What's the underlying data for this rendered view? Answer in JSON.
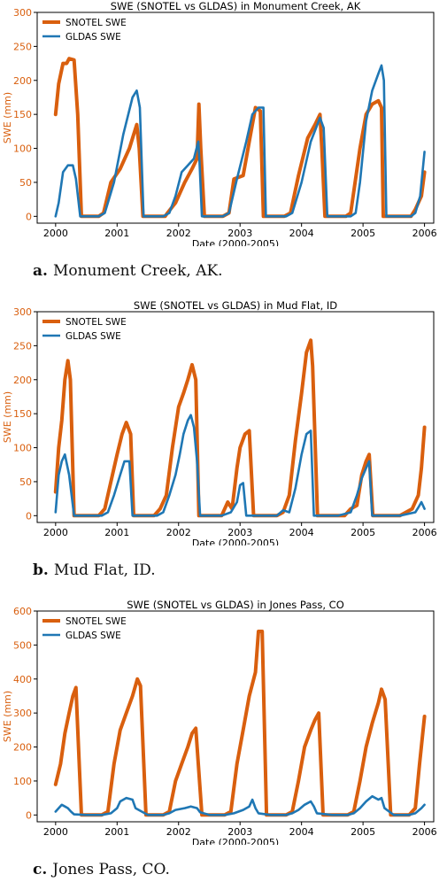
{
  "chart_data": [
    {
      "type": "line",
      "title": "SWE (SNOTEL vs GLDAS) in Monument Creek, AK",
      "xlabel": "Date (2000-2005)",
      "ylabel": "SWE (mm)",
      "xlim": [
        1999.7,
        2006.15
      ],
      "ylim": [
        -10,
        300
      ],
      "xticks": [
        2000,
        2001,
        2002,
        2003,
        2004,
        2005,
        2006
      ],
      "xtick_labels": [
        "2000",
        "2001",
        "2002",
        "2003",
        "2004",
        "2005",
        "2006"
      ],
      "yticks": [
        0,
        50,
        100,
        150,
        200,
        250,
        300
      ],
      "ytick_labels": [
        "0",
        "50",
        "100",
        "150",
        "200",
        "250",
        "300"
      ],
      "legend": "top-left",
      "grid": false,
      "series": [
        {
          "name": "SNOTEL SWE",
          "color": "#d95f0e",
          "x": [
            2000.0,
            2000.05,
            2000.12,
            2000.18,
            2000.22,
            2000.3,
            2000.36,
            2000.42,
            2000.7,
            2000.78,
            2000.9,
            2001.05,
            2001.2,
            2001.32,
            2001.36,
            2001.42,
            2001.78,
            2001.82,
            2001.95,
            2002.1,
            2002.22,
            2002.3,
            2002.33,
            2002.36,
            2002.42,
            2002.72,
            2002.82,
            2002.9,
            2003.05,
            2003.15,
            2003.25,
            2003.33,
            2003.38,
            2003.72,
            2003.82,
            2003.95,
            2004.1,
            2004.22,
            2004.3,
            2004.33,
            2004.38,
            2004.72,
            2004.8,
            2004.95,
            2005.05,
            2005.15,
            2005.25,
            2005.3,
            2005.33,
            2005.78,
            2005.85,
            2005.95,
            2006.0
          ],
          "y": [
            150,
            195,
            225,
            225,
            232,
            230,
            150,
            0,
            0,
            5,
            50,
            70,
            100,
            135,
            100,
            0,
            0,
            5,
            20,
            50,
            70,
            85,
            165,
            100,
            0,
            0,
            5,
            55,
            60,
            110,
            160,
            155,
            0,
            0,
            5,
            60,
            115,
            135,
            150,
            100,
            0,
            0,
            5,
            100,
            150,
            165,
            170,
            160,
            0,
            0,
            10,
            30,
            65
          ]
        },
        {
          "name": "GLDAS SWE",
          "color": "#1f77b4",
          "x": [
            2000.0,
            2000.05,
            2000.12,
            2000.2,
            2000.28,
            2000.33,
            2000.4,
            2000.7,
            2000.8,
            2000.95,
            2001.1,
            2001.25,
            2001.32,
            2001.37,
            2001.43,
            2001.75,
            2001.85,
            2001.95,
            2002.05,
            2002.15,
            2002.25,
            2002.32,
            2002.34,
            2002.38,
            2002.72,
            2002.82,
            2002.95,
            2003.1,
            2003.2,
            2003.3,
            2003.38,
            2003.42,
            2003.75,
            2003.85,
            2004.0,
            2004.15,
            2004.3,
            2004.36,
            2004.42,
            2004.8,
            2004.88,
            2004.95,
            2005.05,
            2005.15,
            2005.25,
            2005.3,
            2005.34,
            2005.38,
            2005.78,
            2005.85,
            2005.93,
            2006.0
          ],
          "y": [
            0,
            20,
            65,
            75,
            75,
            55,
            0,
            0,
            5,
            50,
            120,
            175,
            185,
            160,
            0,
            0,
            5,
            30,
            65,
            75,
            85,
            110,
            80,
            0,
            0,
            5,
            55,
            110,
            150,
            160,
            160,
            0,
            0,
            5,
            50,
            110,
            145,
            130,
            0,
            0,
            5,
            50,
            140,
            185,
            210,
            222,
            200,
            0,
            0,
            5,
            30,
            95
          ]
        }
      ]
    },
    {
      "type": "line",
      "title": "SWE (SNOTEL vs GLDAS) in Mud Flat, ID",
      "xlabel": "Date (2000-2005)",
      "ylabel": "SWE (mm)",
      "xlim": [
        1999.7,
        2006.15
      ],
      "ylim": [
        -10,
        300
      ],
      "xticks": [
        2000,
        2001,
        2002,
        2003,
        2004,
        2005,
        2006
      ],
      "xtick_labels": [
        "2000",
        "2001",
        "2002",
        "2003",
        "2004",
        "2005",
        "2006"
      ],
      "yticks": [
        0,
        50,
        100,
        150,
        200,
        250,
        300
      ],
      "ytick_labels": [
        "0",
        "50",
        "100",
        "150",
        "200",
        "250",
        "300"
      ],
      "legend": "top-left",
      "grid": false,
      "series": [
        {
          "name": "SNOTEL SWE",
          "color": "#d95f0e",
          "x": [
            2000.0,
            2000.05,
            2000.1,
            2000.15,
            2000.2,
            2000.24,
            2000.3,
            2000.7,
            2000.8,
            2000.9,
            2001.0,
            2001.08,
            2001.15,
            2001.22,
            2001.27,
            2001.6,
            2001.7,
            2001.8,
            2001.9,
            2002.0,
            2002.08,
            2002.15,
            2002.22,
            2002.28,
            2002.33,
            2002.7,
            2002.8,
            2002.87,
            2002.95,
            2003.0,
            2003.08,
            2003.15,
            2003.22,
            2003.6,
            2003.7,
            2003.8,
            2003.9,
            2004.0,
            2004.08,
            2004.15,
            2004.18,
            2004.26,
            2004.7,
            2004.8,
            2004.9,
            2004.98,
            2005.05,
            2005.1,
            2005.16,
            2005.6,
            2005.8,
            2005.9,
            2005.95,
            2006.0
          ],
          "y": [
            35,
            100,
            140,
            200,
            228,
            200,
            0,
            0,
            10,
            50,
            90,
            120,
            137,
            120,
            0,
            0,
            10,
            30,
            100,
            160,
            180,
            200,
            222,
            200,
            0,
            0,
            20,
            10,
            70,
            100,
            120,
            125,
            0,
            0,
            5,
            30,
            110,
            180,
            240,
            258,
            220,
            0,
            0,
            10,
            15,
            60,
            80,
            90,
            0,
            0,
            10,
            30,
            70,
            130
          ]
        },
        {
          "name": "GLDAS SWE",
          "color": "#1f77b4",
          "x": [
            2000.0,
            2000.05,
            2000.1,
            2000.15,
            2000.22,
            2000.3,
            2000.75,
            2000.85,
            2000.95,
            2001.05,
            2001.12,
            2001.2,
            2001.25,
            2001.65,
            2001.75,
            2001.85,
            2001.95,
            2002.02,
            2002.08,
            2002.15,
            2002.2,
            2002.25,
            2002.3,
            2002.35,
            2002.7,
            2002.85,
            2002.95,
            2003.0,
            2003.05,
            2003.1,
            2003.6,
            2003.7,
            2003.8,
            2003.9,
            2004.0,
            2004.08,
            2004.15,
            2004.2,
            2004.6,
            2004.8,
            2004.9,
            2004.98,
            2005.05,
            2005.1,
            2005.15,
            2005.6,
            2005.85,
            2005.9,
            2005.95,
            2006.0
          ],
          "y": [
            5,
            60,
            80,
            90,
            60,
            0,
            0,
            5,
            30,
            60,
            80,
            80,
            0,
            0,
            5,
            30,
            60,
            90,
            120,
            140,
            148,
            130,
            80,
            0,
            0,
            5,
            20,
            45,
            48,
            0,
            0,
            8,
            5,
            40,
            90,
            120,
            125,
            0,
            0,
            5,
            30,
            55,
            70,
            80,
            0,
            0,
            5,
            12,
            20,
            10
          ]
        }
      ]
    },
    {
      "type": "line",
      "title": "SWE (SNOTEL vs GLDAS) in Jones Pass, CO",
      "xlabel": "Date (2000-2005)",
      "ylabel": "SWE (mm)",
      "xlim": [
        1999.7,
        2006.15
      ],
      "ylim": [
        -20,
        600
      ],
      "xticks": [
        2000,
        2001,
        2002,
        2003,
        2004,
        2005,
        2006
      ],
      "xtick_labels": [
        "2000",
        "2001",
        "2002",
        "2003",
        "2004",
        "2005",
        "2006"
      ],
      "yticks": [
        0,
        100,
        200,
        300,
        400,
        500,
        600
      ],
      "ytick_labels": [
        "0",
        "100",
        "200",
        "300",
        "400",
        "500",
        "600"
      ],
      "legend": "top-left",
      "grid": false,
      "series": [
        {
          "name": "SNOTEL SWE",
          "color": "#d95f0e",
          "x": [
            2000.0,
            2000.08,
            2000.15,
            2000.22,
            2000.28,
            2000.33,
            2000.42,
            2000.75,
            2000.85,
            2000.95,
            2001.05,
            2001.15,
            2001.25,
            2001.33,
            2001.38,
            2001.47,
            2001.75,
            2001.85,
            2001.95,
            2002.05,
            2002.15,
            2002.22,
            2002.28,
            2002.38,
            2002.75,
            2002.85,
            2002.95,
            2003.05,
            2003.15,
            2003.25,
            2003.3,
            2003.36,
            2003.43,
            2003.75,
            2003.85,
            2003.95,
            2004.05,
            2004.15,
            2004.22,
            2004.28,
            2004.35,
            2004.75,
            2004.85,
            2004.95,
            2005.05,
            2005.15,
            2005.25,
            2005.3,
            2005.36,
            2005.45,
            2005.75,
            2005.85,
            2005.92,
            2006.0
          ],
          "y": [
            90,
            150,
            240,
            300,
            350,
            375,
            0,
            0,
            10,
            150,
            250,
            300,
            350,
            400,
            380,
            0,
            0,
            10,
            100,
            150,
            200,
            240,
            255,
            0,
            0,
            10,
            150,
            250,
            350,
            420,
            540,
            540,
            0,
            0,
            10,
            100,
            200,
            250,
            280,
            300,
            0,
            0,
            10,
            100,
            200,
            270,
            330,
            370,
            340,
            0,
            0,
            20,
            150,
            290
          ]
        },
        {
          "name": "GLDAS SWE",
          "color": "#1f77b4",
          "x": [
            2000.0,
            2000.05,
            2000.1,
            2000.15,
            2000.2,
            2000.25,
            2000.3,
            2000.5,
            2000.75,
            2000.9,
            2001.0,
            2001.05,
            2001.15,
            2001.25,
            2001.3,
            2001.5,
            2001.75,
            2001.85,
            2001.95,
            2002.1,
            2002.2,
            2002.3,
            2002.35,
            2002.5,
            2002.75,
            2002.9,
            2003.05,
            2003.15,
            2003.2,
            2003.25,
            2003.3,
            2003.5,
            2003.75,
            2003.85,
            2003.95,
            2004.05,
            2004.15,
            2004.2,
            2004.25,
            2004.5,
            2004.75,
            2004.85,
            2004.95,
            2005.05,
            2005.15,
            2005.25,
            2005.3,
            2005.35,
            2005.5,
            2005.75,
            2005.85,
            2005.95,
            2006.0
          ],
          "y": [
            10,
            20,
            30,
            25,
            20,
            10,
            2,
            0,
            0,
            5,
            20,
            40,
            50,
            45,
            20,
            0,
            0,
            5,
            15,
            20,
            25,
            20,
            8,
            0,
            0,
            5,
            15,
            25,
            45,
            20,
            5,
            0,
            0,
            5,
            15,
            30,
            40,
            25,
            5,
            0,
            0,
            5,
            20,
            40,
            55,
            45,
            50,
            20,
            0,
            0,
            5,
            20,
            30
          ]
        }
      ]
    }
  ],
  "captions": [
    {
      "letter": "a.",
      "text": "Monument Creek, AK."
    },
    {
      "letter": "b.",
      "text": "Mud Flat, ID."
    },
    {
      "letter": "c.",
      "text": "Jones Pass, CO."
    }
  ]
}
